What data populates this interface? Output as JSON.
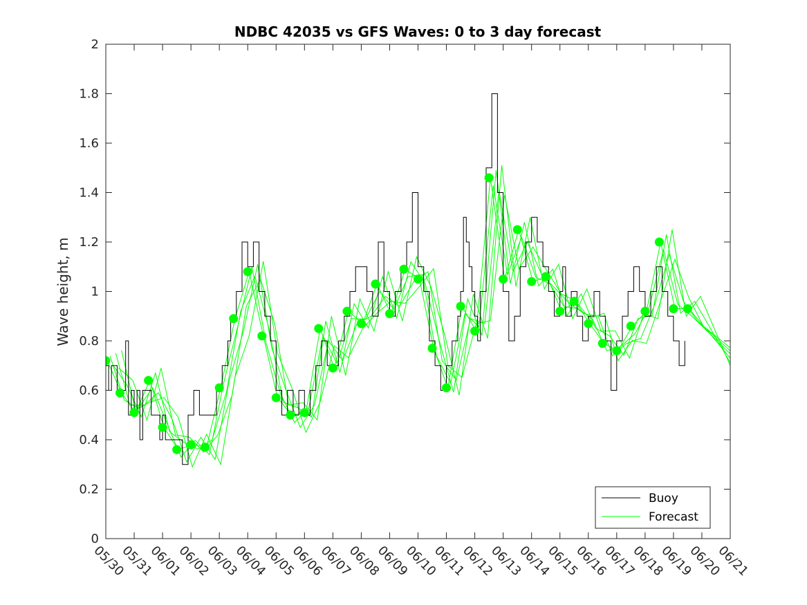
{
  "chart_data": {
    "type": "line",
    "title": "NDBC 42035 vs GFS Waves: 0 to 3 day forecast",
    "xlabel": "",
    "ylabel": "Wave height, m",
    "ylim": [
      0,
      2
    ],
    "yticks": [
      0,
      0.2,
      0.4,
      0.6,
      0.8,
      1,
      1.2,
      1.4,
      1.6,
      1.8,
      2
    ],
    "ytick_labels": [
      "0",
      "0.2",
      "0.4",
      "0.6",
      "0.8",
      "1",
      "1.2",
      "1.4",
      "1.6",
      "1.8",
      "2"
    ],
    "xlim_days": [
      0,
      22
    ],
    "xtick_labels": [
      "05/30",
      "05/31",
      "06/01",
      "06/02",
      "06/03",
      "06/04",
      "06/05",
      "06/06",
      "06/07",
      "06/08",
      "06/09",
      "06/10",
      "06/11",
      "06/12",
      "06/13",
      "06/14",
      "06/15",
      "06/16",
      "06/17",
      "06/18",
      "06/19",
      "06/20",
      "06/21"
    ],
    "grid": false,
    "legend_position": "bottom-right",
    "legend": [
      {
        "label": "Buoy",
        "color": "#000000"
      },
      {
        "label": "Forecast",
        "color": "#00ff00"
      }
    ],
    "buoy": {
      "name": "Buoy",
      "color": "#000000",
      "x": [
        0.0,
        0.1,
        0.2,
        0.4,
        0.5,
        0.7,
        0.8,
        0.9,
        1.0,
        1.1,
        1.2,
        1.3,
        1.5,
        1.6,
        1.7,
        1.9,
        2.0,
        2.1,
        2.3,
        2.5,
        2.7,
        2.9,
        3.1,
        3.3,
        3.5,
        3.7,
        3.9,
        4.1,
        4.3,
        4.4,
        4.6,
        4.8,
        5.0,
        5.2,
        5.4,
        5.6,
        5.8,
        6.0,
        6.2,
        6.4,
        6.6,
        6.8,
        7.0,
        7.2,
        7.4,
        7.6,
        7.8,
        8.0,
        8.2,
        8.4,
        8.6,
        8.8,
        9.0,
        9.2,
        9.4,
        9.6,
        9.8,
        10.0,
        10.2,
        10.4,
        10.6,
        10.8,
        11.0,
        11.2,
        11.4,
        11.6,
        11.8,
        12.0,
        12.2,
        12.4,
        12.5,
        12.6,
        12.7,
        12.8,
        12.9,
        13.0,
        13.1,
        13.2,
        13.4,
        13.6,
        13.8,
        14.0,
        14.2,
        14.4,
        14.6,
        14.8,
        15.0,
        15.2,
        15.4,
        15.6,
        15.8,
        16.0,
        16.1,
        16.2,
        16.4,
        16.6,
        16.8,
        17.0,
        17.2,
        17.4,
        17.6,
        17.8,
        18.0,
        18.2,
        18.4,
        18.6,
        18.8,
        19.0,
        19.2,
        19.4,
        19.6,
        19.8,
        20.0,
        20.2,
        20.4
      ],
      "y": [
        0.7,
        0.6,
        0.7,
        0.6,
        0.6,
        0.8,
        0.5,
        0.6,
        0.5,
        0.6,
        0.4,
        0.6,
        0.6,
        0.5,
        0.5,
        0.4,
        0.5,
        0.4,
        0.4,
        0.4,
        0.3,
        0.5,
        0.6,
        0.5,
        0.5,
        0.5,
        0.6,
        0.7,
        0.8,
        0.9,
        1.0,
        1.2,
        1.1,
        1.2,
        1.0,
        0.9,
        0.8,
        0.6,
        0.5,
        0.6,
        0.5,
        0.6,
        0.5,
        0.6,
        0.7,
        0.8,
        0.7,
        0.7,
        0.8,
        0.9,
        1.0,
        1.1,
        1.1,
        1.0,
        0.9,
        1.2,
        1.0,
        0.9,
        1.0,
        1.1,
        1.2,
        1.4,
        1.1,
        1.0,
        0.8,
        0.7,
        0.6,
        0.7,
        0.8,
        0.9,
        1.0,
        1.3,
        1.2,
        1.1,
        1.0,
        0.9,
        0.8,
        1.0,
        1.5,
        1.8,
        1.4,
        1.0,
        0.8,
        0.9,
        1.1,
        1.2,
        1.3,
        1.2,
        1.1,
        1.0,
        0.9,
        1.0,
        1.1,
        0.9,
        1.0,
        0.9,
        0.8,
        0.9,
        1.0,
        0.9,
        0.8,
        0.6,
        0.8,
        0.9,
        1.0,
        1.1,
        1.0,
        0.9,
        1.0,
        1.1,
        1.0,
        0.9,
        0.8,
        0.7,
        0.8
      ]
    },
    "forecast_points": {
      "name": "Forecast",
      "color": "#00ff00",
      "x": [
        0.0,
        0.5,
        1.0,
        1.5,
        2.0,
        2.5,
        3.0,
        3.5,
        4.0,
        4.5,
        5.0,
        5.5,
        6.0,
        6.5,
        7.0,
        7.5,
        8.0,
        8.5,
        9.0,
        9.5,
        10.0,
        10.5,
        11.0,
        11.5,
        12.0,
        12.5,
        13.0,
        13.5,
        14.0,
        14.5,
        15.0,
        15.5,
        16.0,
        16.5,
        17.0,
        17.5,
        18.0,
        18.5,
        19.0,
        19.5,
        20.0,
        20.5
      ],
      "y": [
        0.72,
        0.59,
        0.51,
        0.64,
        0.45,
        0.36,
        0.38,
        0.37,
        0.61,
        0.89,
        1.08,
        0.82,
        0.57,
        0.5,
        0.51,
        0.85,
        0.69,
        0.92,
        0.87,
        1.03,
        0.91,
        1.09,
        1.05,
        0.77,
        0.61,
        0.94,
        0.84,
        1.46,
        1.05,
        1.25,
        1.04,
        1.06,
        0.92,
        0.96,
        0.87,
        0.79,
        0.76,
        0.86,
        0.92,
        1.2,
        0.93,
        0.93
      ]
    }
  }
}
